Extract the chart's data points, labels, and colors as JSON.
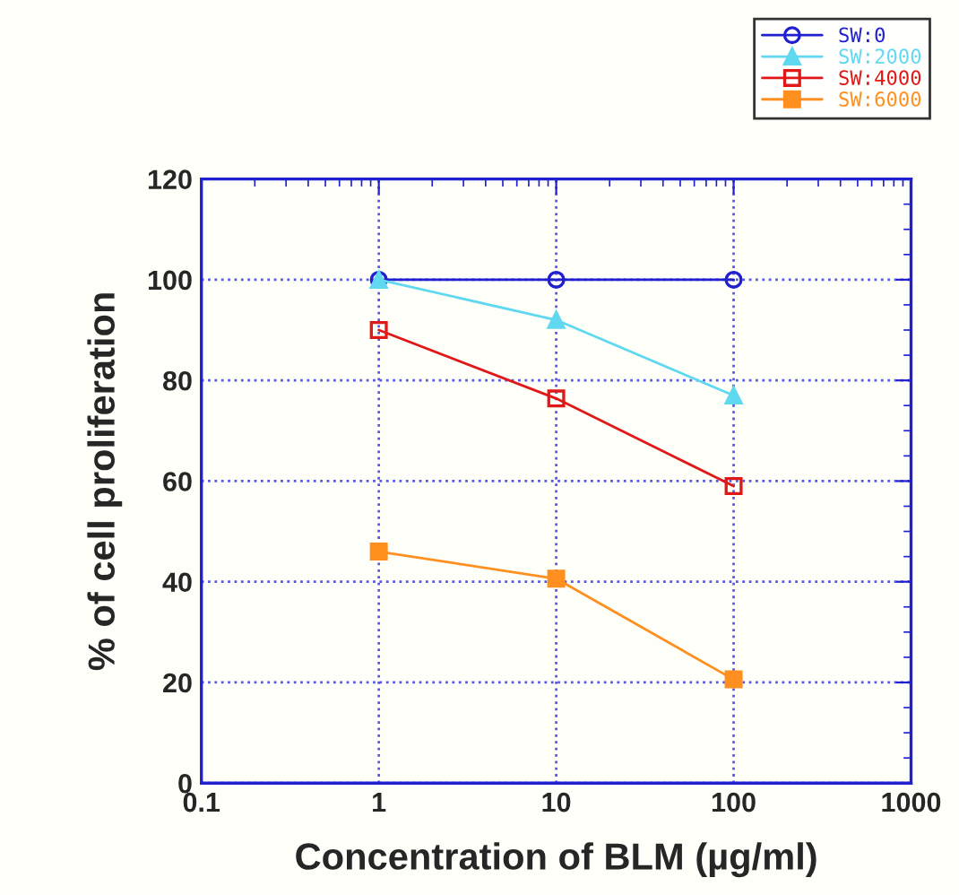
{
  "chart_data": {
    "type": "line",
    "xlabel": "Concentration of BLM (µg/ml)",
    "ylabel": "% of cell proliferation",
    "x": [
      1,
      10,
      100
    ],
    "log": "x",
    "xlim": [
      0.1,
      1000
    ],
    "xticks": [
      0.1,
      1,
      10,
      100,
      1000
    ],
    "ylim": [
      0,
      120
    ],
    "yticks": [
      0,
      20,
      40,
      60,
      80,
      100,
      120
    ],
    "grid": true,
    "legend": "top right",
    "line_style": "solid",
    "series": [
      {
        "name": "SW:0",
        "color": "#2020d0",
        "marker": "circle",
        "values": [
          100,
          100,
          100
        ]
      },
      {
        "name": "SW:2000",
        "color": "#60d8f0",
        "marker": "triangle",
        "values": [
          100,
          92,
          77
        ]
      },
      {
        "name": "SW:4000",
        "color": "#e01818",
        "marker": "square",
        "values": [
          90,
          76.4,
          59
        ]
      },
      {
        "name": "SW:6000",
        "color": "#ff9020",
        "marker": "square",
        "values": [
          46,
          40.6,
          20.6
        ]
      }
    ]
  }
}
